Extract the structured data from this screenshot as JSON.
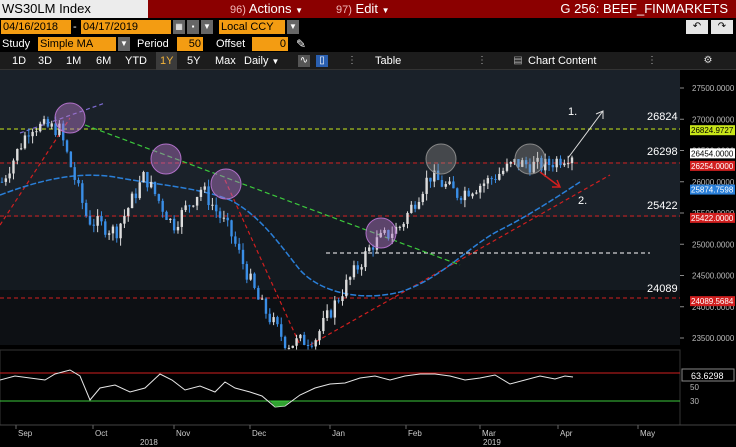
{
  "title_bar": {
    "ticker": "WS30LM Index",
    "actions_num": "96)",
    "actions_label": "Actions",
    "edit_num": "97)",
    "edit_label": "Edit",
    "function": "G 256: BEEF_FINMARKETS"
  },
  "date_range": {
    "start": "04/16/2018",
    "end": "04/17/2019",
    "currency": "Local CCY"
  },
  "study": {
    "label": "Study",
    "type": "Simple MA",
    "period_label": "Period",
    "period_value": "50",
    "offset_label": "Offset",
    "offset_value": "0"
  },
  "toolbar": {
    "periods": [
      "1D",
      "3D",
      "1M",
      "6M",
      "YTD",
      "1Y",
      "5Y",
      "Max"
    ],
    "active_period": "1Y",
    "frequency": "Daily",
    "table_label": "Table",
    "chart_content_label": "Chart Content"
  },
  "colors": {
    "accent": "#f39c12",
    "titlebar": "#8b0000",
    "candle": "#3a8ee6",
    "ma": "#2a7fd8"
  },
  "chart_data": {
    "type": "line",
    "price_axis_ticks": [
      "27500.0000",
      "27000.0000",
      "26500.0000",
      "26000.0000",
      "25500.0000",
      "25000.0000",
      "24500.0000",
      "24000.0000",
      "23500.0000"
    ],
    "price_labels": [
      {
        "value": 26824.9727,
        "text": "26824.9727",
        "color": "#c8e619"
      },
      {
        "value": 26454.0,
        "text": "26454.0000",
        "color": "#ffffff"
      },
      {
        "value": 26254.0,
        "text": "26254.0000",
        "color": "#d11f1f"
      },
      {
        "value": 25874.7598,
        "text": "25874.7598",
        "color": "#2a7fd8"
      },
      {
        "value": 25422.0,
        "text": "25422.0000",
        "color": "#d11f1f"
      },
      {
        "value": 24089.5684,
        "text": "24089.5684",
        "color": "#d11f1f"
      }
    ],
    "annotations": [
      "26824",
      "26298",
      "25422",
      "24089",
      "1.",
      "2."
    ],
    "rsi_ticks": [
      "70",
      "50",
      "30"
    ],
    "rsi_value": "63.6298",
    "x_ticks": [
      "Sep",
      "Oct",
      "Nov",
      "Dec",
      "Jan",
      "Feb",
      "Mar",
      "Apr",
      "May"
    ],
    "years": [
      "2018",
      "2019"
    ],
    "series": [
      {
        "name": "Price",
        "x": [
          "Sep",
          "Sep",
          "Oct",
          "Oct",
          "Oct",
          "Nov",
          "Nov",
          "Nov",
          "Dec",
          "Dec",
          "Dec",
          "Jan",
          "Jan",
          "Jan",
          "Feb",
          "Feb",
          "Mar",
          "Mar",
          "Mar",
          "Apr",
          "Apr"
        ],
        "values": [
          26000,
          26900,
          26850,
          25400,
          25200,
          26100,
          25300,
          25900,
          25200,
          24100,
          23400,
          23500,
          24300,
          25000,
          25300,
          26100,
          25800,
          26000,
          26300,
          26250,
          26454
        ]
      }
    ]
  }
}
